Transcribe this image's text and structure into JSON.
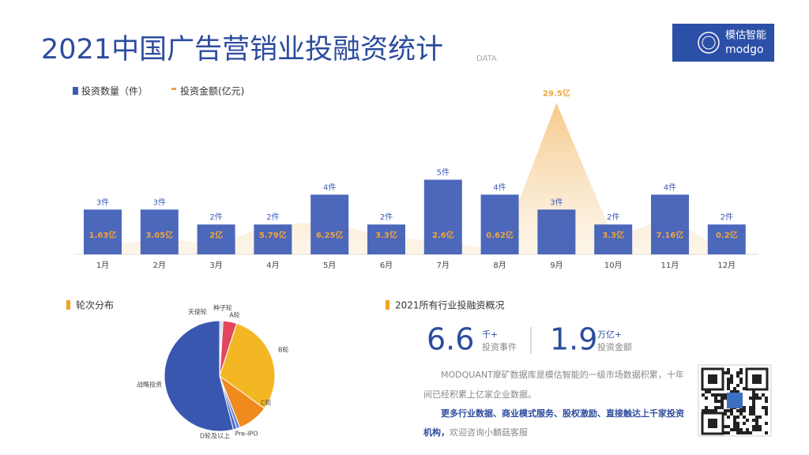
{
  "header": {
    "title": "2021中国广告营销业投融资统计",
    "subtitle": "DATA",
    "logo_cn": "模估智能",
    "logo_en": "modgo"
  },
  "chart_data": [
    {
      "type": "bar",
      "categories": [
        "1月",
        "2月",
        "3月",
        "4月",
        "5月",
        "6月",
        "7月",
        "8月",
        "9月",
        "10月",
        "11月",
        "12月"
      ],
      "series": [
        {
          "name": "投资数量（件）",
          "color": "#3d5bb5",
          "values": [
            3,
            3,
            2,
            2,
            4,
            2,
            5,
            4,
            3,
            2,
            4,
            2
          ],
          "value_labels": [
            "3件",
            "3件",
            "2件",
            "2件",
            "4件",
            "2件",
            "5件",
            "4件",
            "3件",
            "2件",
            "4件",
            "2件"
          ]
        },
        {
          "name": "投资金额(亿元)",
          "type": "area",
          "color": "#f0a53a",
          "values": [
            1.63,
            3.05,
            2,
            5.79,
            6.25,
            3.3,
            2.6,
            0.62,
            29.5,
            3.3,
            7.16,
            0.2
          ],
          "value_labels": [
            "1.63亿",
            "3.05亿",
            "2亿",
            "5.79亿",
            "6.25亿",
            "3.3亿",
            "2.6亿",
            "0.62亿",
            "29.5亿",
            "3.3亿",
            "7.16亿",
            "0.2亿"
          ]
        }
      ]
    },
    {
      "type": "pie",
      "title": "轮次分布",
      "categories": [
        "天使轮",
        "种子轮",
        "A轮",
        "B轮",
        "C轮",
        "Pre-IPO",
        "D轮及以上",
        "战略投资"
      ],
      "values": [
        0.5,
        0.5,
        4,
        30,
        9,
        1,
        1,
        54
      ],
      "colors": [
        "#9fb1e0",
        "#d0d0d0",
        "#e2475b",
        "#f3b724",
        "#ef8a1d",
        "#6c88d4",
        "#4766c0",
        "#3a57b0"
      ]
    }
  ],
  "summary": {
    "title": "2021所有行业投融资概况",
    "stat1": {
      "value": "6.6",
      "unit": "千+",
      "label": "投资事件"
    },
    "stat2": {
      "value": "1.9",
      "unit": "万亿+",
      "label": "投资金额"
    },
    "paragraph": "MODQUANT摩矿数据库是模估智能的一级市场数据积累，十年间已经积累上亿家企业数据。",
    "highlight": "更多行业数据、商业模式服务、股权激励、直接触达上千家投资机构，",
    "contact": "欢迎咨询小麟菇客服"
  }
}
